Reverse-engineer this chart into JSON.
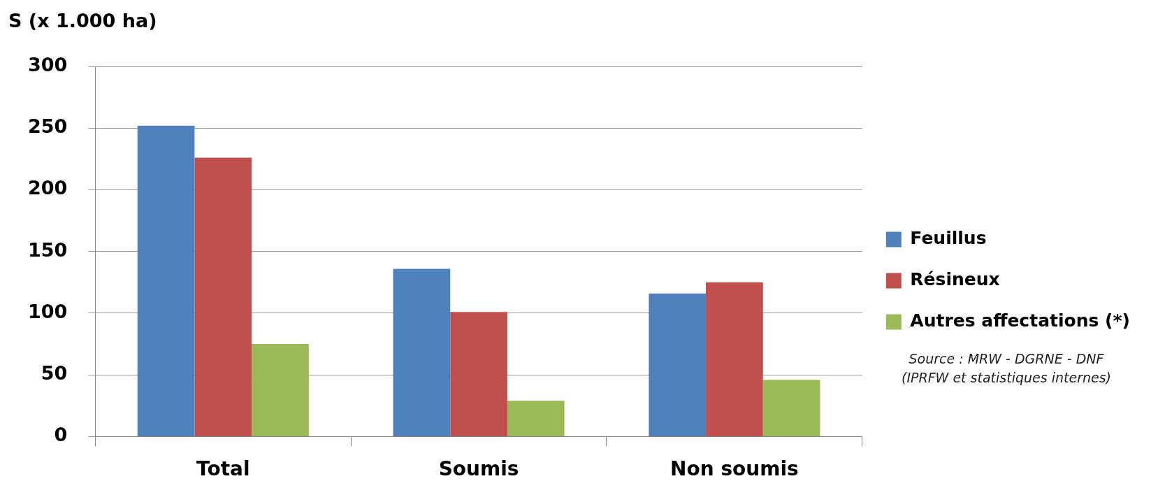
{
  "chart_data": {
    "type": "bar",
    "ylabel": "S (x 1.000 ha)",
    "categories": [
      "Total",
      "Soumis",
      "Non soumis"
    ],
    "series": [
      {
        "name": "Feuillus",
        "color": "#4f81bd",
        "values": [
          252,
          136,
          116
        ]
      },
      {
        "name": "Résineux",
        "color": "#c0504d",
        "values": [
          226,
          101,
          125
        ]
      },
      {
        "name": "Autres affectations (*)",
        "color": "#9bbb59",
        "values": [
          75,
          29,
          46
        ]
      }
    ],
    "ylim": [
      0,
      300
    ],
    "yticks": [
      0,
      50,
      100,
      150,
      200,
      250,
      300
    ],
    "grid": "y",
    "legend": "right",
    "annotations": [
      "Source : MRW - DGRNE - DNF\n(IPRFW et statistiques internes)"
    ]
  }
}
